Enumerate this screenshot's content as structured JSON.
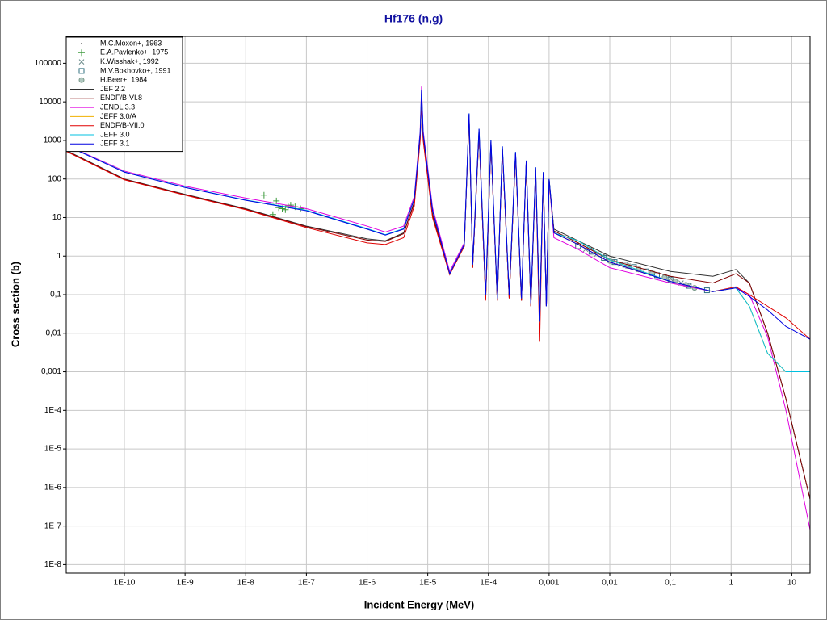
{
  "chart_data": {
    "type": "line",
    "title": "Hf176 (n,g)",
    "x_label": "Incident Energy (MeV)",
    "y_label": "Cross section (b)",
    "xscale": "log",
    "yscale": "log",
    "grid": true,
    "legend": "upper left",
    "xlim": [
      1.1e-11,
      20
    ],
    "ylim": [
      6e-09,
      500000
    ],
    "xticks": [
      {
        "value": 1e-10,
        "label": "1E-10"
      },
      {
        "value": 1e-09,
        "label": "1E-9"
      },
      {
        "value": 1e-08,
        "label": "1E-8"
      },
      {
        "value": 1e-07,
        "label": "1E-7"
      },
      {
        "value": 1e-06,
        "label": "1E-6"
      },
      {
        "value": 1e-05,
        "label": "1E-5"
      },
      {
        "value": 0.0001,
        "label": "1E-4"
      },
      {
        "value": 0.001,
        "label": "0,001"
      },
      {
        "value": 0.01,
        "label": "0,01"
      },
      {
        "value": 0.1,
        "label": "0,1"
      },
      1,
      10
    ],
    "yticks": [
      100000,
      10000,
      1000,
      100,
      10,
      1,
      {
        "value": 0.1,
        "label": "0,1"
      },
      {
        "value": 0.01,
        "label": "0,01"
      },
      {
        "value": 0.001,
        "label": "0,001"
      },
      {
        "value": 0.0001,
        "label": "1E-4"
      },
      {
        "value": 1e-05,
        "label": "1E-5"
      },
      {
        "value": 1e-06,
        "label": "1E-6"
      },
      {
        "value": 1e-07,
        "label": "1E-7"
      },
      {
        "value": 1e-08,
        "label": "1E-8"
      }
    ],
    "x": [
      1.1e-11,
      1e-10,
      1e-09,
      1e-08,
      1e-07,
      1e-06,
      2e-06,
      4e-06,
      6e-06,
      7.5e-06,
      7.9e-06,
      8.4e-06,
      1.2e-05,
      2.3e-05,
      4e-05,
      4.8e-05,
      5.5e-05,
      7e-05,
      9e-05,
      0.00011,
      0.00014,
      0.00017,
      0.00022,
      0.00028,
      0.00035,
      0.00042,
      0.0005,
      0.0006,
      0.0007,
      0.0008,
      0.0009,
      0.001,
      0.0012,
      0.003,
      0.01,
      0.1,
      0.5,
      1.2,
      2,
      4,
      8,
      20
    ],
    "series": [
      {
        "name": "M.C.Moxon+, 1963",
        "marker": "dot",
        "color": "#707070",
        "x": [
          0.003,
          0.005,
          0.008,
          0.012,
          0.02,
          0.03
        ],
        "values": [
          2.2,
          1.6,
          1.1,
          0.8,
          0.6,
          0.5
        ]
      },
      {
        "name": "E.A.Pavlenko+, 1975",
        "marker": "plus",
        "color": "#3c9a3c",
        "x": [
          2e-08,
          2.6e-08,
          2.8e-08,
          3.2e-08,
          3.5e-08,
          4e-08,
          4.5e-08,
          5e-08,
          5.5e-08,
          6.5e-08,
          8e-08
        ],
        "values": [
          38,
          22,
          12,
          27,
          18,
          17,
          16,
          20,
          21,
          19,
          17
        ]
      },
      {
        "name": "K.Wisshak+, 1992",
        "marker": "x",
        "color": "#6a8a8a",
        "x": [
          0.004,
          0.006,
          0.01,
          0.015,
          0.02,
          0.03,
          0.05,
          0.08,
          0.1,
          0.15,
          0.2
        ],
        "values": [
          1.5,
          1.1,
          0.8,
          0.62,
          0.55,
          0.45,
          0.35,
          0.3,
          0.26,
          0.2,
          0.17
        ]
      },
      {
        "name": "M.V.Bokhovko+, 1991",
        "marker": "square",
        "color": "#2f6f7f",
        "x": [
          0.003,
          0.005,
          0.008,
          0.012,
          0.018,
          0.025,
          0.04,
          0.06,
          0.1,
          0.2,
          0.4
        ],
        "values": [
          1.8,
          1.3,
          0.9,
          0.7,
          0.6,
          0.52,
          0.4,
          0.32,
          0.25,
          0.17,
          0.13
        ]
      },
      {
        "name": "H.Beer+, 1984",
        "marker": "circle",
        "color": "#7a9a8a",
        "x": [
          0.01,
          0.02,
          0.03,
          0.05,
          0.08,
          0.12,
          0.18,
          0.25
        ],
        "values": [
          0.75,
          0.55,
          0.45,
          0.36,
          0.28,
          0.22,
          0.18,
          0.15
        ]
      },
      {
        "name": "JEF 2.2",
        "color": "#303030",
        "values": [
          550,
          100,
          40,
          17,
          6,
          2.8,
          2.5,
          4,
          25,
          1200,
          15000,
          1200,
          12,
          0.35,
          1.8,
          4000,
          0.5,
          1500,
          0.08,
          800,
          0.07,
          600,
          0.08,
          400,
          0.07,
          250,
          0.05,
          150,
          0.03,
          120,
          0.05,
          100,
          5,
          2.5,
          1,
          0.4,
          0.3,
          0.45,
          0.2,
          0.01,
          0.0002,
          5e-07
        ]
      },
      {
        "name": "ENDF/B-VI.8",
        "color": "#800000",
        "values": [
          530,
          98,
          39,
          16.5,
          5.8,
          2.6,
          2.4,
          3.8,
          24,
          1150,
          14000,
          1150,
          11,
          0.34,
          1.8,
          4200,
          0.5,
          1600,
          0.08,
          850,
          0.07,
          600,
          0.08,
          420,
          0.07,
          260,
          0.05,
          160,
          0.02,
          130,
          0.05,
          95,
          4.5,
          2.2,
          0.8,
          0.3,
          0.2,
          0.35,
          0.2,
          0.01,
          0.0002,
          5e-07
        ]
      },
      {
        "name": "JENDL 3.3",
        "color": "#e000e0",
        "values": [
          760,
          160,
          65,
          32,
          17,
          6,
          4.2,
          6,
          35,
          1800,
          25000,
          1800,
          18,
          0.4,
          2.2,
          4500,
          0.7,
          1800,
          0.1,
          900,
          0.08,
          600,
          0.1,
          450,
          0.08,
          280,
          0.06,
          180,
          0.02,
          140,
          0.05,
          90,
          3,
          1.5,
          0.5,
          0.2,
          0.12,
          0.15,
          0.1,
          0.008,
          0.0001,
          8e-08
        ]
      },
      {
        "name": "JEFF 3.0/A",
        "color": "#f0b000",
        "values": [
          null,
          null,
          null,
          null,
          null,
          null,
          null,
          null,
          null,
          null,
          null,
          null,
          null,
          null,
          null,
          null,
          null,
          null,
          null,
          null,
          null,
          null,
          null,
          null,
          null,
          null,
          null,
          null,
          null,
          null,
          null,
          null,
          4,
          2.5,
          0.8,
          0.22,
          0.12,
          0.15,
          0.05,
          0.003,
          0.001,
          0.001
        ]
      },
      {
        "name": "ENDF/B-VII.0",
        "color": "#e00000",
        "values": [
          520,
          95,
          38,
          16,
          5.5,
          2.2,
          2,
          3,
          20,
          1000,
          12000,
          1000,
          10,
          0.33,
          1.8,
          4500,
          0.5,
          1700,
          0.07,
          900,
          0.07,
          600,
          0.08,
          450,
          0.07,
          280,
          0.05,
          180,
          0.006,
          140,
          0.05,
          90,
          4,
          2,
          0.7,
          0.22,
          0.12,
          0.16,
          0.1,
          0.05,
          0.025,
          0.007
        ]
      },
      {
        "name": "JEFF 3.0",
        "color": "#00c0e0",
        "values": [
          750,
          152,
          61,
          28.5,
          15.5,
          5.2,
          3.6,
          5.2,
          31,
          1550,
          21000,
          1550,
          15,
          0.35,
          2,
          5000,
          0.6,
          2000,
          0.1,
          1000,
          0.08,
          700,
          0.1,
          500,
          0.08,
          300,
          0.06,
          200,
          0.02,
          150,
          0.05,
          100,
          4,
          2.5,
          0.8,
          0.22,
          0.12,
          0.15,
          0.05,
          0.003,
          0.001,
          0.001
        ]
      },
      {
        "name": "JEFF 3.1",
        "color": "#0000e0",
        "values": [
          740,
          150,
          60,
          28,
          15,
          5,
          3.5,
          5,
          30,
          1500,
          20000,
          1500,
          15,
          0.35,
          2,
          5000,
          0.6,
          2000,
          0.1,
          1000,
          0.08,
          700,
          0.1,
          500,
          0.08,
          300,
          0.06,
          200,
          0.02,
          150,
          0.05,
          100,
          4,
          2,
          0.7,
          0.22,
          0.12,
          0.15,
          0.09,
          0.04,
          0.015,
          0.007
        ]
      }
    ]
  }
}
